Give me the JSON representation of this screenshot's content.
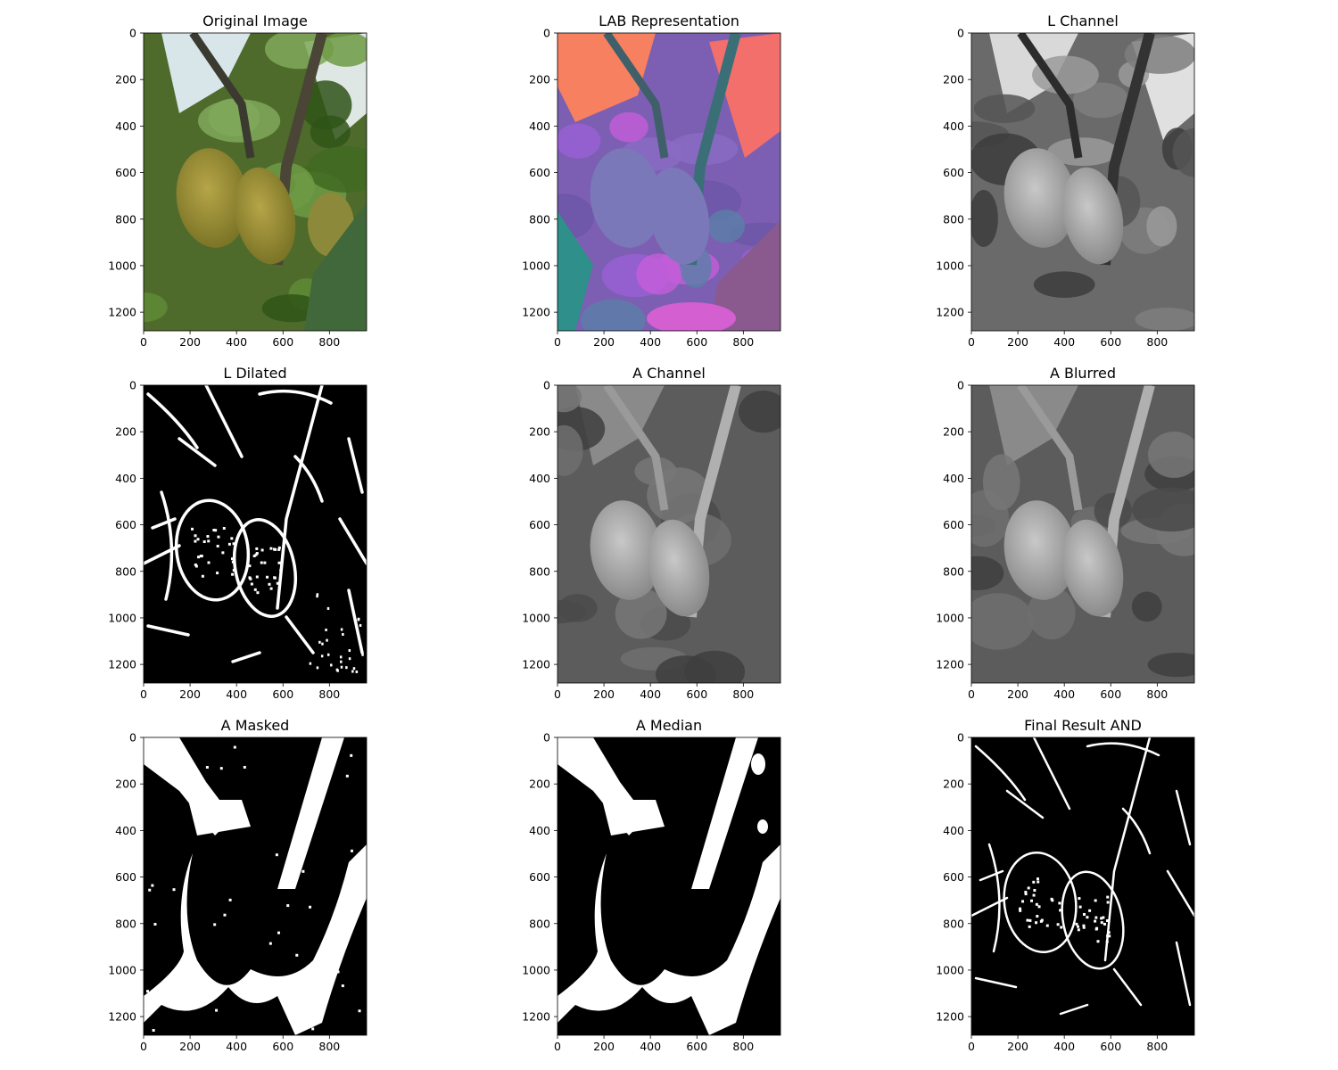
{
  "panels": [
    {
      "title": "Original Image",
      "style": "original"
    },
    {
      "title": "LAB Representation",
      "style": "lab"
    },
    {
      "title": "L Channel",
      "style": "gray"
    },
    {
      "title": "L Dilated",
      "style": "edges"
    },
    {
      "title": "A Channel",
      "style": "gray-flat"
    },
    {
      "title": "A Blurred",
      "style": "gray-flat"
    },
    {
      "title": "A Masked",
      "style": "mask"
    },
    {
      "title": "A Median",
      "style": "mask-smooth"
    },
    {
      "title": "Final Result AND",
      "style": "edges-final"
    }
  ],
  "x_ticks": [
    "0",
    "200",
    "400",
    "600",
    "800"
  ],
  "y_ticks": [
    "0",
    "200",
    "400",
    "600",
    "800",
    "1000",
    "1200"
  ]
}
